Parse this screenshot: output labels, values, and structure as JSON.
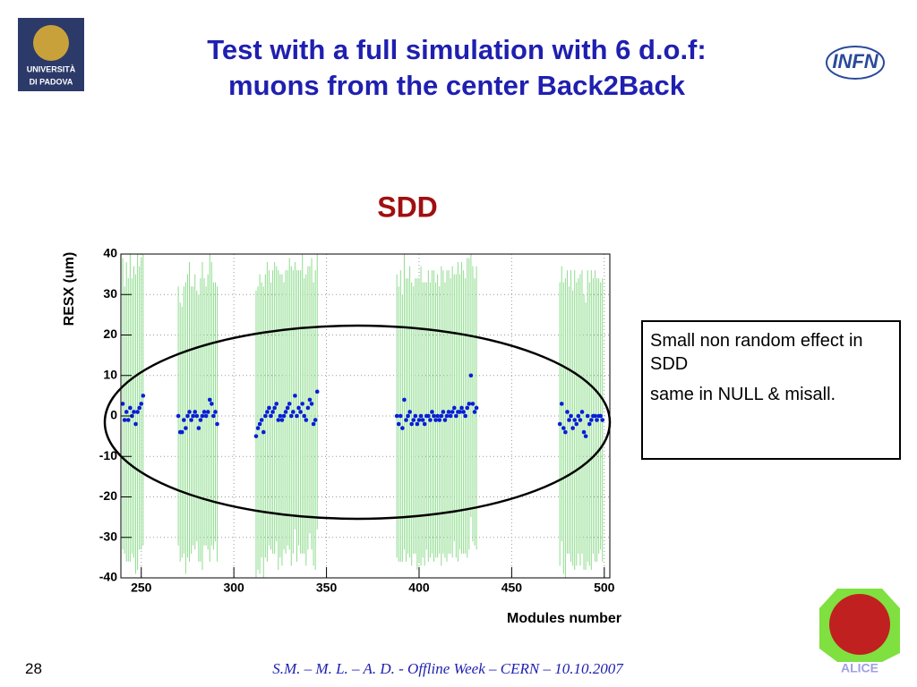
{
  "slide": {
    "title": [
      "Test with a full simulation with 6 d.o.f:",
      "muons from the center Back2Back"
    ],
    "note": [
      "Small non random effect in SDD",
      "same in NULL & misall."
    ],
    "footer": "S.M. – M. L. – A. D.   - Offline Week – CERN – 10.10.2007",
    "page_number": "28",
    "logos": {
      "left": [
        "UNIVERSITÀ",
        "DI PADOVA"
      ],
      "right": "INFN",
      "bottom": "ALICE"
    }
  },
  "chart_data": {
    "type": "scatter",
    "title": "SDD",
    "x_label": "Modules number",
    "y_label": "RESX (um)",
    "x": [
      240,
      241,
      242,
      243,
      244,
      245,
      246,
      247,
      248,
      249,
      250,
      251,
      270,
      271,
      272,
      273,
      274,
      275,
      276,
      277,
      278,
      279,
      280,
      281,
      282,
      283,
      284,
      285,
      286,
      287,
      288,
      289,
      290,
      291,
      312,
      313,
      314,
      315,
      316,
      317,
      318,
      319,
      320,
      321,
      322,
      323,
      324,
      325,
      326,
      327,
      328,
      329,
      330,
      331,
      332,
      333,
      334,
      335,
      336,
      337,
      338,
      339,
      340,
      341,
      342,
      343,
      344,
      345,
      388,
      389,
      390,
      391,
      392,
      393,
      394,
      395,
      396,
      397,
      398,
      399,
      400,
      401,
      402,
      403,
      404,
      405,
      406,
      407,
      408,
      409,
      410,
      411,
      412,
      413,
      414,
      415,
      416,
      417,
      418,
      419,
      420,
      421,
      422,
      423,
      424,
      425,
      426,
      427,
      428,
      429,
      430,
      431,
      476,
      477,
      478,
      479,
      480,
      481,
      482,
      483,
      484,
      485,
      486,
      487,
      488,
      489,
      490,
      491,
      492,
      493,
      494,
      495,
      496,
      497,
      498,
      499
    ],
    "series": [
      {
        "color": "#0a1ed8",
        "error_color": "#8fdc8f",
        "values": [
          3,
          -1,
          1,
          -1,
          2,
          0,
          1,
          -2,
          1,
          2,
          3,
          5,
          0,
          -4,
          -4,
          -1,
          -3,
          0,
          1,
          -1,
          0,
          1,
          0,
          -3,
          -1,
          0,
          1,
          0,
          1,
          4,
          3,
          0,
          1,
          -2,
          -5,
          -3,
          -2,
          -1,
          -4,
          0,
          1,
          2,
          0,
          1,
          2,
          3,
          -1,
          0,
          -1,
          0,
          1,
          2,
          3,
          0,
          1,
          5,
          0,
          2,
          1,
          3,
          0,
          -1,
          2,
          4,
          3,
          -2,
          -1,
          6,
          0,
          -2,
          0,
          -3,
          4,
          -1,
          0,
          1,
          -2,
          -1,
          0,
          -2,
          -1,
          0,
          -1,
          -2,
          0,
          0,
          -1,
          1,
          0,
          -1,
          0,
          -1,
          0,
          1,
          -1,
          0,
          1,
          0,
          1,
          2,
          0,
          1,
          1,
          2,
          1,
          0,
          2,
          3,
          10,
          3,
          1,
          2,
          -2,
          3,
          -3,
          -4,
          1,
          -1,
          0,
          -3,
          -1,
          -2,
          0,
          -1,
          1,
          -4,
          -5,
          0,
          -2,
          -1,
          0,
          0,
          -1,
          0,
          0,
          -1
        ],
        "errors": [
          36,
          33,
          37,
          35,
          38,
          34,
          36,
          37,
          39,
          35,
          36,
          37,
          32,
          32,
          31,
          33,
          36,
          35,
          37,
          33,
          32,
          34,
          31,
          33,
          35,
          38,
          33,
          32,
          34,
          40,
          35,
          33,
          32,
          34,
          36,
          35,
          37,
          34,
          36,
          35,
          37,
          34,
          33,
          35,
          36,
          34,
          37,
          35,
          36,
          33,
          35,
          34,
          36,
          37,
          35,
          33,
          36,
          34,
          35,
          37,
          34,
          36,
          35,
          33,
          36,
          35,
          37,
          34,
          35,
          34,
          36,
          33,
          37,
          35,
          34,
          36,
          35,
          33,
          34,
          36,
          35,
          37,
          34,
          35,
          33,
          36,
          34,
          35,
          36,
          34,
          35,
          33,
          37,
          35,
          34,
          36,
          35,
          34,
          36,
          33,
          35,
          37,
          34,
          36,
          35,
          34,
          37,
          36,
          35,
          34,
          33,
          35,
          35,
          34,
          36,
          38,
          35,
          33,
          36,
          34,
          37,
          35,
          34,
          36,
          35,
          34,
          33,
          36,
          35,
          37,
          34,
          36,
          35,
          34,
          33,
          35
        ]
      }
    ],
    "xlim": [
      239,
      503
    ],
    "ylim": [
      -40,
      40
    ],
    "xticks": [
      250,
      300,
      350,
      400,
      450,
      500
    ],
    "yticks": [
      -40,
      -30,
      -20,
      -10,
      0,
      10,
      20,
      30,
      40
    ],
    "grid": true
  }
}
